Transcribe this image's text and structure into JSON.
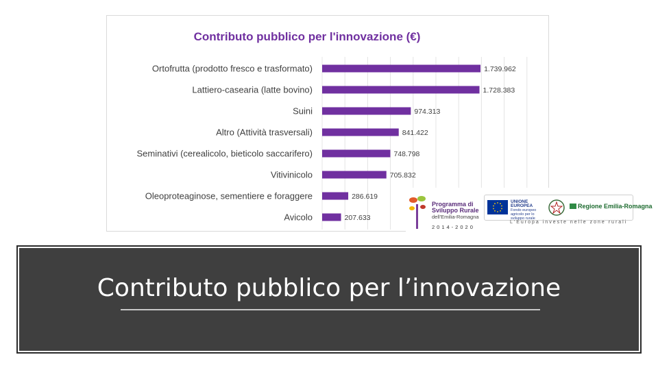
{
  "chart_data": {
    "type": "bar",
    "orientation": "horizontal",
    "title": "Contributo  pubblico per l'innovazione  (€)",
    "categories": [
      "Ortofrutta (prodotto fresco e trasformato)",
      "Lattiero-casearia (latte bovino)",
      "Suini",
      "Altro (Attività trasversali)",
      "Seminativi (cerealicolo, bieticolo saccarifero)",
      "Vitivinicolo",
      "Oleoproteaginose, sementiere e foraggere",
      "Avicolo"
    ],
    "values": [
      1739962,
      1728383,
      974313,
      841422,
      748798,
      705832,
      286619,
      207633
    ],
    "value_labels": [
      "1.739.962",
      "1.728.383",
      "974.313",
      "841.422",
      "748.798",
      "705.832",
      "286.619",
      "207.633"
    ],
    "xlim": [
      0,
      2500000
    ],
    "grid": true,
    "bar_color": "#7030a0",
    "title_color": "#7030a0",
    "label_color": "#404040"
  },
  "logos": {
    "psr_line1": "Programma di",
    "psr_line2": "Sviluppo Rurale",
    "psr_line3": "dell'Emilia-Romagna",
    "psr_years": "2014-2020",
    "eu_name": "UNIONE EUROPEA",
    "eu_fund": "Fondo europeo agricolo per lo sviluppo rurale",
    "region_name": "Regione Emilia-Romagna",
    "tagline": "L'Europa investe nelle zone rurali"
  },
  "banner": {
    "title": "Contributo pubblico per l’innovazione",
    "background": "#3f3f3f"
  }
}
